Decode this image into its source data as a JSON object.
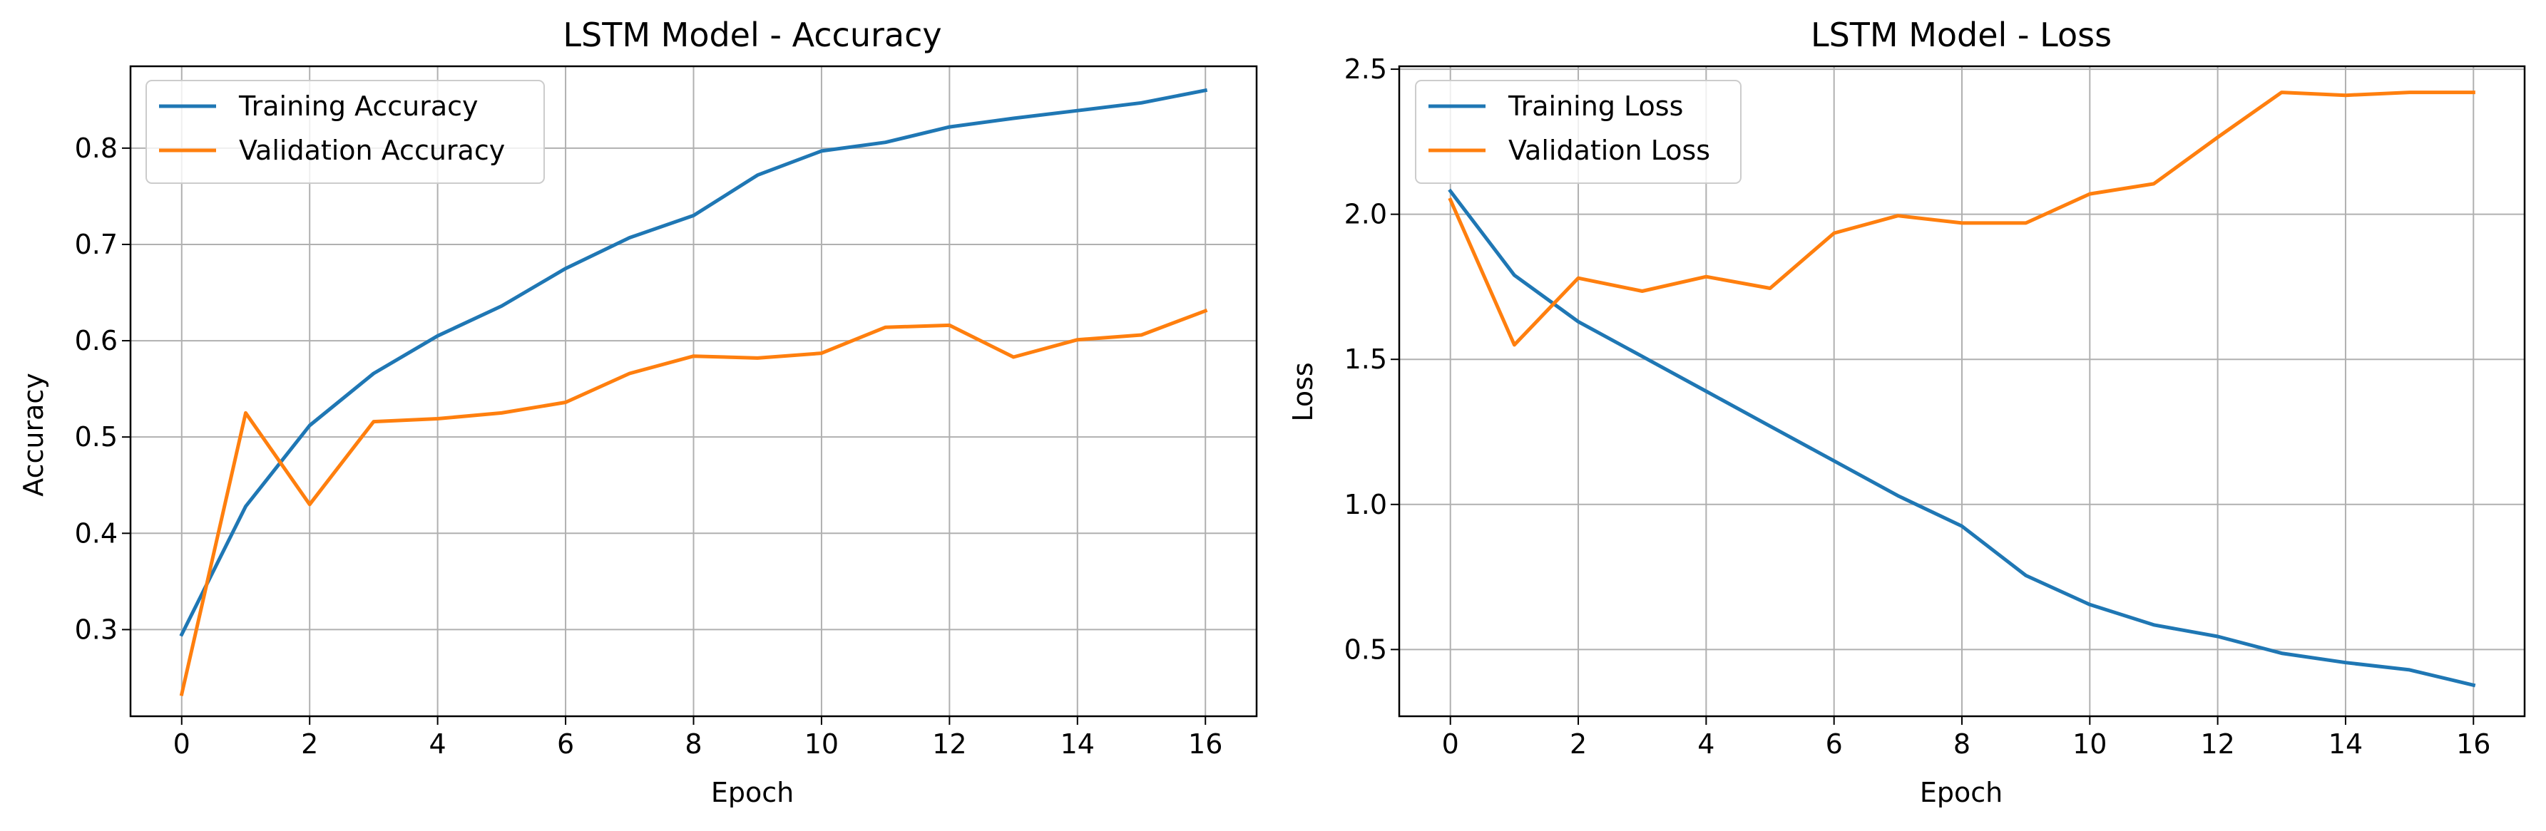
{
  "chart_data": [
    {
      "type": "line",
      "title": "LSTM Model - Accuracy",
      "xlabel": "Epoch",
      "ylabel": "Accuracy",
      "x": [
        0,
        1,
        2,
        3,
        4,
        5,
        6,
        7,
        8,
        9,
        10,
        11,
        12,
        13,
        14,
        15,
        16
      ],
      "xlim": [
        -0.8,
        16.8
      ],
      "ylim": [
        0.21,
        0.885
      ],
      "xticks": [
        0,
        2,
        4,
        6,
        8,
        10,
        12,
        14,
        16
      ],
      "xtick_labels": [
        "0",
        "2",
        "4",
        "6",
        "8",
        "10",
        "12",
        "14",
        "16"
      ],
      "yticks": [
        0.3,
        0.4,
        0.5,
        0.6,
        0.7,
        0.8
      ],
      "ytick_labels": [
        "0.3",
        "0.4",
        "0.5",
        "0.6",
        "0.7",
        "0.8"
      ],
      "grid": true,
      "legend": "top-left",
      "series": [
        {
          "name": "Training Accuracy",
          "color": "#1f77b4",
          "values": [
            0.295,
            0.428,
            0.512,
            0.566,
            0.605,
            0.636,
            0.675,
            0.707,
            0.73,
            0.772,
            0.797,
            0.806,
            0.822,
            0.831,
            0.839,
            0.847,
            0.86
          ]
        },
        {
          "name": "Validation Accuracy",
          "color": "#ff7f0e",
          "values": [
            0.233,
            0.525,
            0.43,
            0.516,
            0.519,
            0.525,
            0.536,
            0.566,
            0.584,
            0.582,
            0.587,
            0.614,
            0.616,
            0.583,
            0.601,
            0.606,
            0.631
          ]
        }
      ]
    },
    {
      "type": "line",
      "title": "LSTM Model - Loss",
      "xlabel": "Epoch",
      "ylabel": "Loss",
      "x": [
        0,
        1,
        2,
        3,
        4,
        5,
        6,
        7,
        8,
        9,
        10,
        11,
        12,
        13,
        14,
        15,
        16
      ],
      "xlim": [
        -0.8,
        16.8
      ],
      "ylim": [
        0.27,
        2.51
      ],
      "xticks": [
        0,
        2,
        4,
        6,
        8,
        10,
        12,
        14,
        16
      ],
      "xtick_labels": [
        "0",
        "2",
        "4",
        "6",
        "8",
        "10",
        "12",
        "14",
        "16"
      ],
      "yticks": [
        0.5,
        1.0,
        1.5,
        2.0,
        2.5
      ],
      "ytick_labels": [
        "0.5",
        "1.0",
        "1.5",
        "2.0",
        "2.5"
      ],
      "grid": true,
      "legend": "top-left",
      "series": [
        {
          "name": "Training Loss",
          "color": "#1f77b4",
          "values": [
            2.08,
            1.79,
            1.63,
            1.51,
            1.39,
            1.27,
            1.15,
            1.03,
            0.925,
            0.755,
            0.655,
            0.585,
            0.545,
            0.487,
            0.455,
            0.43,
            0.377
          ]
        },
        {
          "name": "Validation Loss",
          "color": "#ff7f0e",
          "values": [
            2.05,
            1.55,
            1.78,
            1.735,
            1.785,
            1.745,
            1.935,
            1.995,
            1.97,
            1.97,
            2.07,
            2.105,
            2.265,
            2.42,
            2.41,
            2.42,
            2.42
          ]
        }
      ]
    }
  ]
}
